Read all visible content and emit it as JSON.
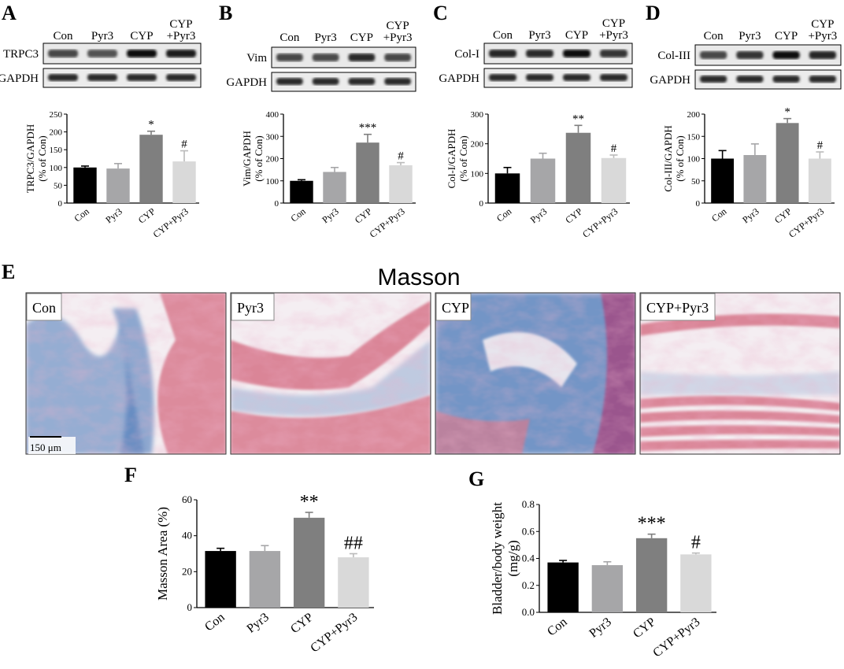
{
  "colors": {
    "Con": "#000000",
    "Pyr3": "#a6a6a8",
    "CYP": "#7f7f7f",
    "CYP+Pyr3": "#d9d9d9",
    "masson_pink": "#d87a8e",
    "masson_blue": "#4a78b8"
  },
  "blot": {
    "lanes": [
      "Con",
      "Pyr3",
      "CYP",
      "CYP\n+Pyr3"
    ],
    "lane_labels": [
      "Con",
      "Pyr3",
      "CYP",
      "CYP"
    ],
    "lane_label_2": "+Pyr3",
    "loading_control": "GAPDH",
    "panels": [
      {
        "letter": "A",
        "protein": "TRPC3"
      },
      {
        "letter": "B",
        "protein": "Vim"
      },
      {
        "letter": "C",
        "protein": "Col-I"
      },
      {
        "letter": "D",
        "protein": "Col-III"
      }
    ]
  },
  "masson": {
    "letter": "E",
    "title": "Masson",
    "labels": [
      "Con",
      "Pyr3",
      "CYP",
      "CYP+Pyr3"
    ],
    "scale_bar": "150 μm"
  },
  "chart_data": [
    {
      "id": "A",
      "type": "bar",
      "categories": [
        "Con",
        "Pyr3",
        "CYP",
        "CYP+Pyr3"
      ],
      "values": [
        100,
        97,
        192,
        117
      ],
      "errors": [
        4,
        14,
        10,
        30
      ],
      "sig": [
        "",
        "",
        "*",
        "#"
      ],
      "ylabel": "TRPC3/GAPDH\n(% of Con)",
      "ylim": [
        0,
        250
      ],
      "yticks": [
        0,
        50,
        100,
        150,
        200,
        250
      ]
    },
    {
      "id": "B",
      "type": "bar",
      "categories": [
        "Con",
        "Pyr3",
        "CYP",
        "CYP+Pyr3"
      ],
      "values": [
        100,
        140,
        272,
        170
      ],
      "errors": [
        5,
        20,
        37,
        12
      ],
      "sig": [
        "",
        "",
        "***",
        "#"
      ],
      "ylabel": "Vim/GAPDH\n(% of Con)",
      "ylim": [
        0,
        400
      ],
      "yticks": [
        0,
        100,
        200,
        300,
        400
      ]
    },
    {
      "id": "C",
      "type": "bar",
      "categories": [
        "Con",
        "Pyr3",
        "CYP",
        "CYP+Pyr3"
      ],
      "values": [
        100,
        150,
        237,
        152
      ],
      "errors": [
        20,
        18,
        25,
        10
      ],
      "sig": [
        "",
        "",
        "**",
        "#"
      ],
      "ylabel": "Col-I/GAPDH\n(% of Con)",
      "ylim": [
        0,
        300
      ],
      "yticks": [
        0,
        100,
        200,
        300
      ]
    },
    {
      "id": "D",
      "type": "bar",
      "categories": [
        "Con",
        "Pyr3",
        "CYP",
        "CYP+Pyr3"
      ],
      "values": [
        100,
        108,
        180,
        100
      ],
      "errors": [
        18,
        25,
        10,
        15
      ],
      "sig": [
        "",
        "",
        "*",
        "#"
      ],
      "ylabel": "Col-III/GAPDH\n(% of Con)",
      "ylim": [
        0,
        200
      ],
      "yticks": [
        0,
        50,
        100,
        150,
        200
      ]
    },
    {
      "id": "F",
      "type": "bar",
      "categories": [
        "Con",
        "Pyr3",
        "CYP",
        "CYP+Pyr3"
      ],
      "values": [
        31.5,
        31.5,
        50,
        28
      ],
      "errors": [
        1.5,
        3,
        3,
        2
      ],
      "sig": [
        "",
        "",
        "**",
        "##"
      ],
      "ylabel": "Masson Area (%)",
      "ylim": [
        0,
        60
      ],
      "yticks": [
        0,
        20,
        40,
        60
      ]
    },
    {
      "id": "G",
      "type": "bar",
      "categories": [
        "Con",
        "Pyr3",
        "CYP",
        "CYP+Pyr3"
      ],
      "values": [
        0.37,
        0.35,
        0.55,
        0.43
      ],
      "errors": [
        0.015,
        0.025,
        0.03,
        0.01
      ],
      "sig": [
        "",
        "",
        "***",
        "#"
      ],
      "ylabel": "Bladder/body weight\n(mg/g)",
      "ylim": [
        0,
        0.8
      ],
      "yticks": [
        "0.0",
        "0.2",
        "0.4",
        "0.6",
        "0.8"
      ]
    }
  ]
}
